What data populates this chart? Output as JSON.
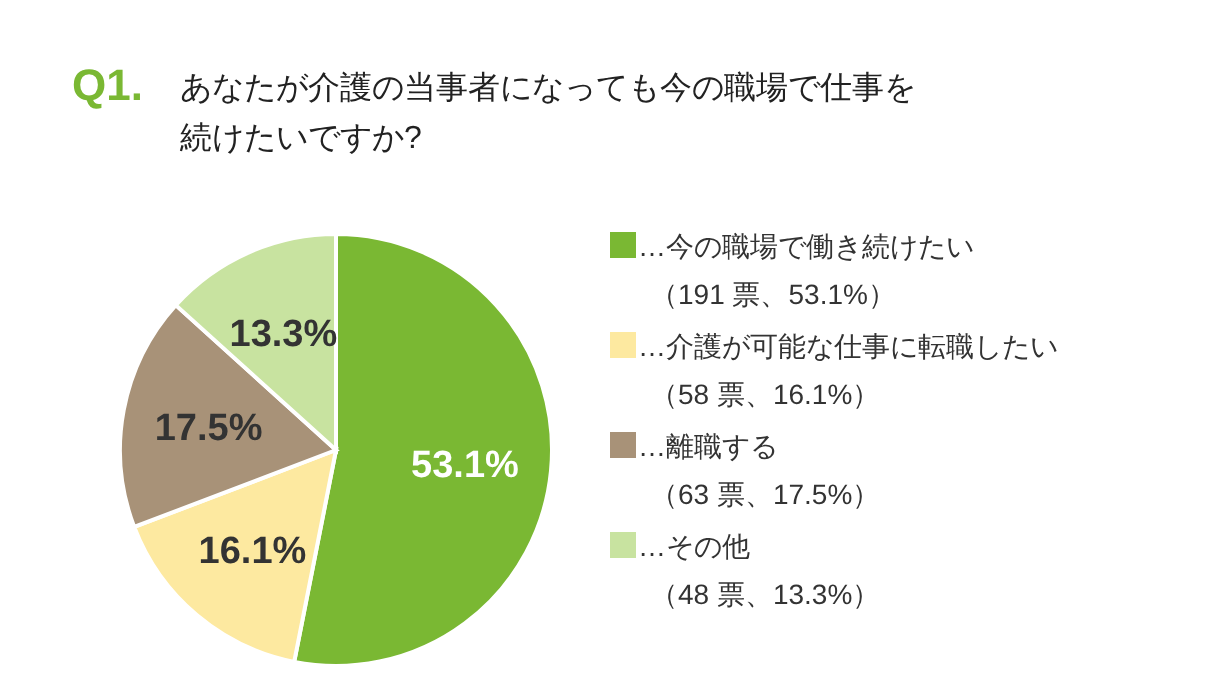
{
  "chart_data": {
    "type": "pie",
    "title": "Q1. あなたが介護の当事者になっても今の職場で仕事を続けたいですか?",
    "categories": [
      "…今の職場で働き続けたい",
      "…介護が可能な仕事に転職したい",
      "…離職する",
      "…その他"
    ],
    "annotations": [
      "（191 票、53.1%）",
      "（58 票、16.1%）",
      "（63 票、17.5%）",
      "（48 票、13.3%）"
    ],
    "values": [
      53.1,
      16.1,
      17.5,
      13.3
    ],
    "colors": [
      "#7ab833",
      "#fde9a0",
      "#a89278",
      "#c8e3a0"
    ],
    "value_labels": [
      "53.1%",
      "16.1%",
      "17.5%",
      "13.3%"
    ],
    "legend": "right"
  }
}
